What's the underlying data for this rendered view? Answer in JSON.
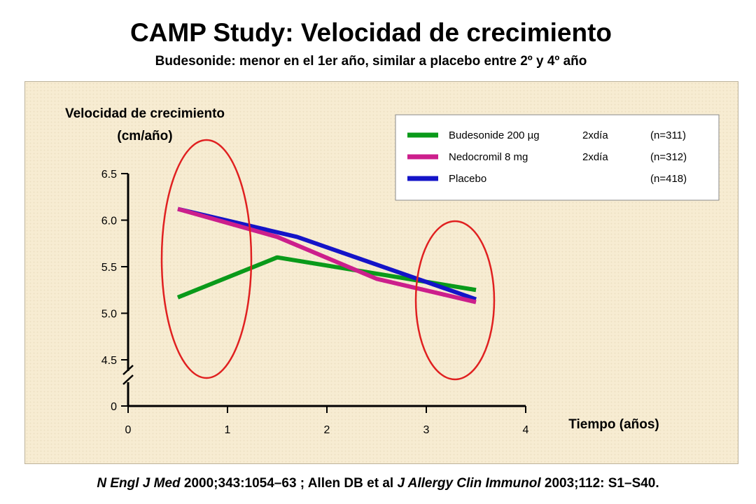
{
  "header": {
    "title": "CAMP Study: Velocidad de crecimiento",
    "subtitle": "Budesonide: menor en el 1er año, similar a placebo entre 2º y 4º año"
  },
  "chart_data": {
    "type": "line",
    "ylabel_line1": "Velocidad de crecimiento",
    "ylabel_line2": "(cm/año)",
    "xlabel": "Tiempo (años)",
    "x_ticks": [
      "0",
      "1",
      "2",
      "3",
      "4"
    ],
    "y_ticks": [
      "6.5",
      "6.0",
      "5.5",
      "5.0",
      "4.5"
    ],
    "y_zero_tick": "0",
    "xlim": [
      0,
      4
    ],
    "ylim": [
      4.5,
      6.5
    ],
    "y_axis_break": true,
    "grid": false,
    "legend_position": "top-right",
    "series": [
      {
        "name": "Budesonide 200 µg",
        "dose": "2xdía",
        "n": "(n=311)",
        "color": "#0a9a1a",
        "x": [
          0.5,
          1.5,
          3.5
        ],
        "values": [
          5.17,
          5.6,
          5.25
        ]
      },
      {
        "name": "Nedocromil 8 mg",
        "dose": "2xdía",
        "n": "(n=312)",
        "color": "#cc1f8c",
        "x": [
          0.5,
          1.5,
          2.5,
          3.5
        ],
        "values": [
          6.12,
          5.82,
          5.37,
          5.12
        ]
      },
      {
        "name": "Placebo",
        "dose": "",
        "n": "(n=418)",
        "color": "#1414c8",
        "x": [
          0.5,
          1.7,
          3.5
        ],
        "values": [
          6.12,
          5.82,
          5.15
        ]
      }
    ],
    "highlight_color": "#e02020"
  },
  "citation": {
    "journal1": "N Engl J Med",
    "ref1": " 2000;343:1054–63  ; Allen DB et al ",
    "journal2": "J Allergy Clin Immunol",
    "ref2": " 2003;112: S1–S40."
  }
}
